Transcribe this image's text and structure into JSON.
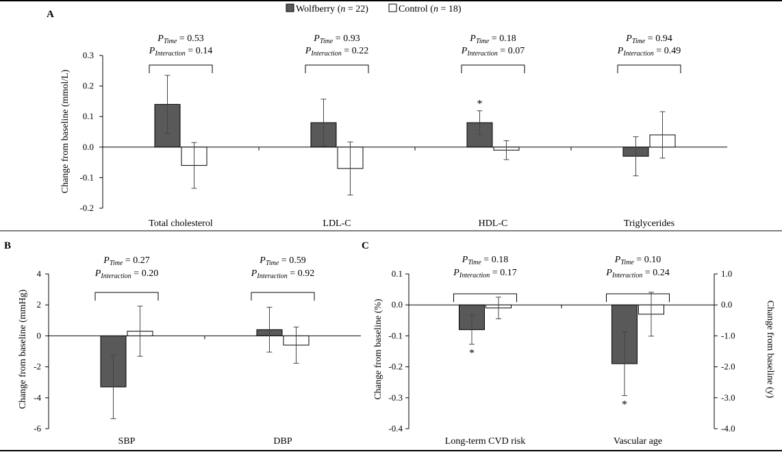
{
  "legend": {
    "wolfberry": {
      "name": "Wolfberry",
      "n": "n",
      "count": "= 22"
    },
    "control": {
      "name": "Control",
      "n": "n",
      "count": "= 18"
    }
  },
  "colors": {
    "wolfberry": "#595959",
    "control": "#ffffff",
    "axis": "#000000",
    "bracket": "#000000"
  },
  "p_labels": {
    "p": "P",
    "time": "Time",
    "interaction": "Interaction"
  },
  "chart_data": [
    {
      "panel": "A",
      "type": "bar",
      "ylabel": "Change from baseline (mmol/L)",
      "ylim": [
        -0.2,
        0.3
      ],
      "yticks": [
        0.3,
        0.2,
        0.1,
        0.0,
        -0.1,
        -0.2
      ],
      "ytick_labels": [
        "0.3",
        "0.2",
        "0.1",
        "0.0",
        "-0.1",
        "-0.2"
      ],
      "categories": [
        "Total cholesterol",
        "LDL-C",
        "HDL-C",
        "Triglycerides"
      ],
      "series": [
        {
          "name": "Wolfberry",
          "values": [
            0.14,
            0.08,
            0.08,
            -0.03
          ],
          "errors": [
            0.095,
            0.077,
            0.039,
            0.064
          ]
        },
        {
          "name": "Control",
          "values": [
            -0.06,
            -0.07,
            -0.01,
            0.04
          ],
          "errors": [
            0.075,
            0.087,
            0.031,
            0.076
          ]
        }
      ],
      "p_time": [
        "= 0.53",
        "= 0.93",
        "= 0.18",
        "= 0.94"
      ],
      "p_interaction": [
        "= 0.14",
        "= 0.22",
        "= 0.07",
        "= 0.49"
      ],
      "significance": [
        {
          "category": 2,
          "series": 0,
          "mark": "*",
          "position": "above"
        }
      ]
    },
    {
      "panel": "B",
      "type": "bar",
      "ylabel": "Change from baseline (mmHg)",
      "ylim": [
        -6,
        4
      ],
      "yticks": [
        4,
        2,
        0,
        -2,
        -4,
        -6
      ],
      "ytick_labels": [
        "4",
        "2",
        "0",
        "-2",
        "-4",
        "-6"
      ],
      "categories": [
        "SBP",
        "DBP"
      ],
      "series": [
        {
          "name": "Wolfberry",
          "values": [
            -3.3,
            0.4
          ],
          "errors": [
            2.05,
            1.45
          ]
        },
        {
          "name": "Control",
          "values": [
            0.3,
            -0.6
          ],
          "errors": [
            1.62,
            1.17
          ]
        }
      ],
      "p_time": [
        "= 0.27",
        "= 0.59"
      ],
      "p_interaction": [
        "= 0.20",
        "= 0.92"
      ],
      "significance": []
    },
    {
      "panel": "C",
      "type": "bar",
      "ylabel": "Change from baseline (%)",
      "ylabel_right": "Change from baseline (y)",
      "ylim": [
        -0.4,
        0.1
      ],
      "yticks": [
        0.1,
        0.0,
        -0.1,
        -0.2,
        -0.3,
        -0.4
      ],
      "ytick_labels": [
        "0.1",
        "0.0",
        "-0.1",
        "-0.2",
        "-0.3",
        "-0.4"
      ],
      "y2ticks": [
        1.0,
        0.0,
        -1.0,
        -2.0,
        -3.0,
        -4.0
      ],
      "y2tick_labels": [
        "1.0",
        "0.0",
        "-1.0",
        "-2.0",
        "-3.0",
        "-4.0"
      ],
      "categories": [
        "Long-term CVD risk",
        "Vascular age"
      ],
      "series": [
        {
          "name": "Wolfberry",
          "values": [
            -0.08,
            -0.19
          ],
          "errors": [
            0.047,
            0.103
          ]
        },
        {
          "name": "Control",
          "values": [
            -0.01,
            -0.03
          ],
          "errors": [
            0.035,
            0.071
          ]
        }
      ],
      "p_time": [
        "= 0.18",
        "= 0.10"
      ],
      "p_interaction": [
        "= 0.17",
        "= 0.24"
      ],
      "significance": [
        {
          "category": 0,
          "series": 0,
          "mark": "*",
          "position": "below"
        },
        {
          "category": 1,
          "series": 0,
          "mark": "*",
          "position": "below"
        }
      ]
    }
  ]
}
